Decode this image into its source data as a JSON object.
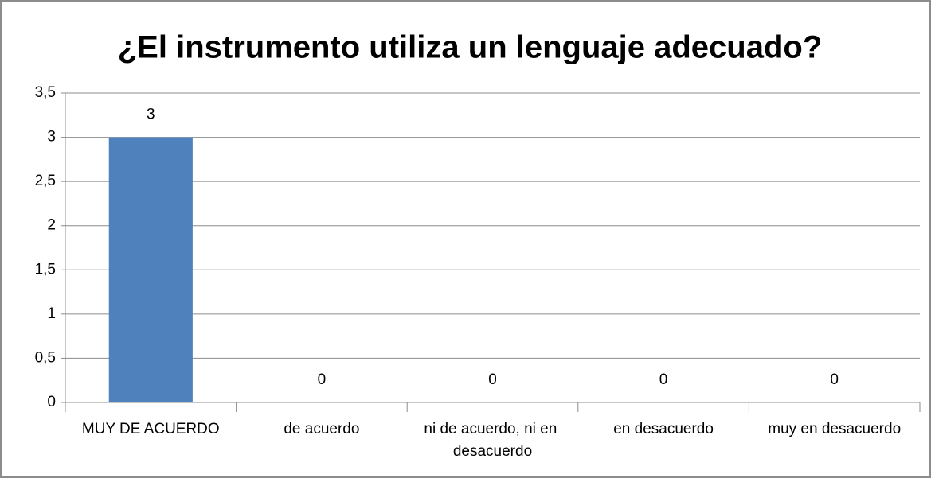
{
  "chart_data": {
    "type": "bar",
    "title": "¿El instrumento utiliza un lenguaje adecuado?",
    "categories": [
      "MUY DE ACUERDO",
      "de acuerdo",
      "ni de acuerdo, ni en desacuerdo",
      "en desacuerdo",
      "muy en desacuerdo"
    ],
    "values": [
      3,
      0,
      0,
      0,
      0
    ],
    "color": "#4f81bd",
    "ylim": [
      0,
      3.5
    ],
    "yticks": [
      0,
      {
        "value": 0.5,
        "label": "0,5"
      },
      1,
      {
        "value": 1.5,
        "label": "1,5"
      },
      2,
      {
        "value": 2.5,
        "label": "2,5"
      },
      3,
      {
        "value": 3.5,
        "label": "3,5"
      }
    ],
    "grid": true
  }
}
